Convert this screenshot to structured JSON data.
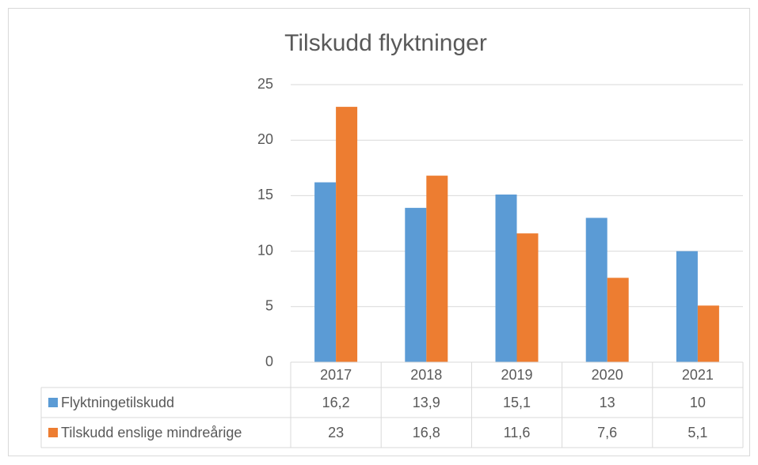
{
  "chart_data": {
    "type": "bar",
    "title": "Tilskudd flyktninger",
    "categories": [
      "2017",
      "2018",
      "2019",
      "2020",
      "2021"
    ],
    "series": [
      {
        "name": "Flyktningetilskudd",
        "color": "#5b9bd5",
        "values": [
          16.2,
          13.9,
          15.1,
          13,
          10
        ],
        "value_labels": [
          "16,2",
          "13,9",
          "15,1",
          "13",
          "10"
        ]
      },
      {
        "name": "Tilskudd enslige mindreårige",
        "color": "#ed7d31",
        "values": [
          23,
          16.8,
          11.6,
          7.6,
          5.1
        ],
        "value_labels": [
          "23",
          "16,8",
          "11,6",
          "7,6",
          "5,1"
        ]
      }
    ],
    "ylim": [
      0,
      25
    ],
    "yticks": [
      0,
      5,
      10,
      15,
      20,
      25
    ],
    "grid": true,
    "data_table": true
  }
}
